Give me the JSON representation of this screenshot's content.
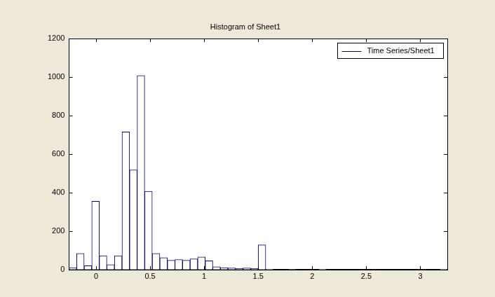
{
  "chart_data": {
    "type": "histogram",
    "title": "Histogram of Sheet1",
    "bins": [
      -0.25,
      -0.18,
      -0.11,
      -0.04,
      0.03,
      0.1,
      0.17,
      0.24,
      0.31,
      0.38,
      0.45,
      0.52,
      0.59,
      0.66,
      0.73,
      0.8,
      0.87,
      0.94,
      1.01,
      1.08,
      1.15,
      1.22,
      1.29,
      1.36,
      1.43,
      1.5,
      1.57,
      1.64,
      1.71,
      1.78,
      1.85,
      1.92,
      1.99,
      2.06,
      2.13,
      2.2,
      2.27,
      2.34,
      2.41,
      2.48,
      2.55,
      2.62,
      2.69,
      2.76,
      2.83,
      2.9,
      2.97,
      3.04,
      3.11,
      3.18,
      3.25
    ],
    "series": [
      {
        "name": "Time Series/Sheet1",
        "color": "#00007f",
        "values": [
          10,
          84,
          20,
          355,
          72,
          25,
          72,
          715,
          518,
          1008,
          407,
          84,
          62,
          48,
          52,
          48,
          55,
          65,
          45,
          14,
          10,
          8,
          5,
          8,
          5,
          128,
          3,
          0,
          0,
          1,
          0,
          0,
          0,
          3,
          0,
          0,
          0,
          0,
          0,
          0,
          0,
          0,
          0,
          0,
          0,
          0,
          0,
          0,
          0,
          3
        ]
      }
    ],
    "xlim": [
      -0.25,
      3.25
    ],
    "xticks": [
      0,
      0.5,
      1,
      1.5,
      2,
      2.5,
      3
    ],
    "ylim": [
      0,
      1200
    ],
    "yticks": [
      0,
      200,
      400,
      600,
      800,
      1000,
      1200
    ],
    "grid": false,
    "legend": "upper right"
  }
}
